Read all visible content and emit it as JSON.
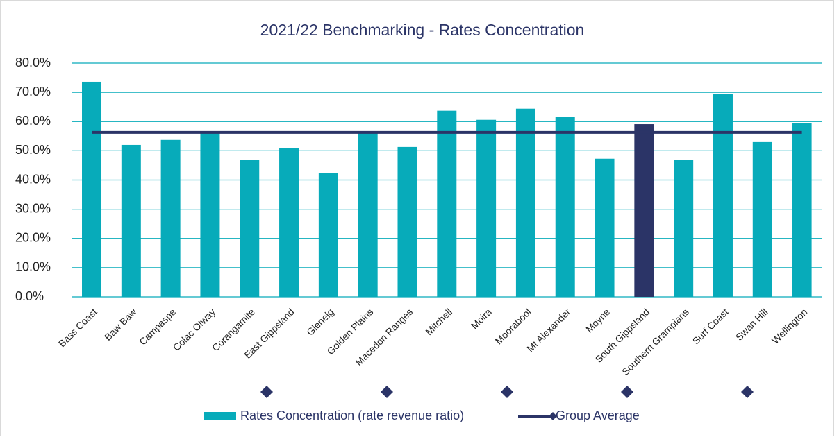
{
  "chart_data": {
    "type": "bar",
    "title": "2021/22 Benchmarking - Rates Concentration",
    "categories": [
      "Bass Coast",
      "Baw Baw",
      "Campaspe",
      "Colac Otway",
      "Corangamite",
      "East Gippsland",
      "Glenelg",
      "Golden Plains",
      "Macedon Ranges",
      "Mitchell",
      "Moira",
      "Moorabool",
      "Mt Alexander",
      "Moyne",
      "South Gippsland",
      "Southern Grampians",
      "Surf Coast",
      "Swan Hill",
      "Wellington"
    ],
    "series": [
      {
        "name": "Rates Concentration (rate revenue ratio)",
        "color": "#07abba",
        "highlight": {
          "category": "South Gippsland",
          "color": "#2b3467"
        },
        "values": [
          73.6,
          52.0,
          53.7,
          56.5,
          46.8,
          50.8,
          42.3,
          56.5,
          51.3,
          63.7,
          60.6,
          64.4,
          61.5,
          47.3,
          59.1,
          47.0,
          69.4,
          53.2,
          59.4
        ]
      },
      {
        "name": "Group Average",
        "type": "line",
        "color": "#2b3467",
        "values": [
          56.3,
          56.3,
          56.3,
          56.3,
          56.3,
          56.3,
          56.3,
          56.3,
          56.3,
          56.3,
          56.3,
          56.3,
          56.3,
          56.3,
          56.3,
          56.3,
          56.3,
          56.3,
          56.3
        ]
      }
    ],
    "ylim": [
      0,
      80
    ],
    "yticks": [
      {
        "value": 0,
        "label": "0.0%"
      },
      {
        "value": 10,
        "label": "10.0%"
      },
      {
        "value": 20,
        "label": "20.0%"
      },
      {
        "value": 30,
        "label": "30.0%"
      },
      {
        "value": 40,
        "label": "40.0%"
      },
      {
        "value": 50,
        "label": "50.0%"
      },
      {
        "value": 60,
        "label": "60.0%"
      },
      {
        "value": 70,
        "label": "70.0%"
      },
      {
        "value": 80,
        "label": "80.0%"
      }
    ],
    "grid": true,
    "legend": "bottom"
  }
}
